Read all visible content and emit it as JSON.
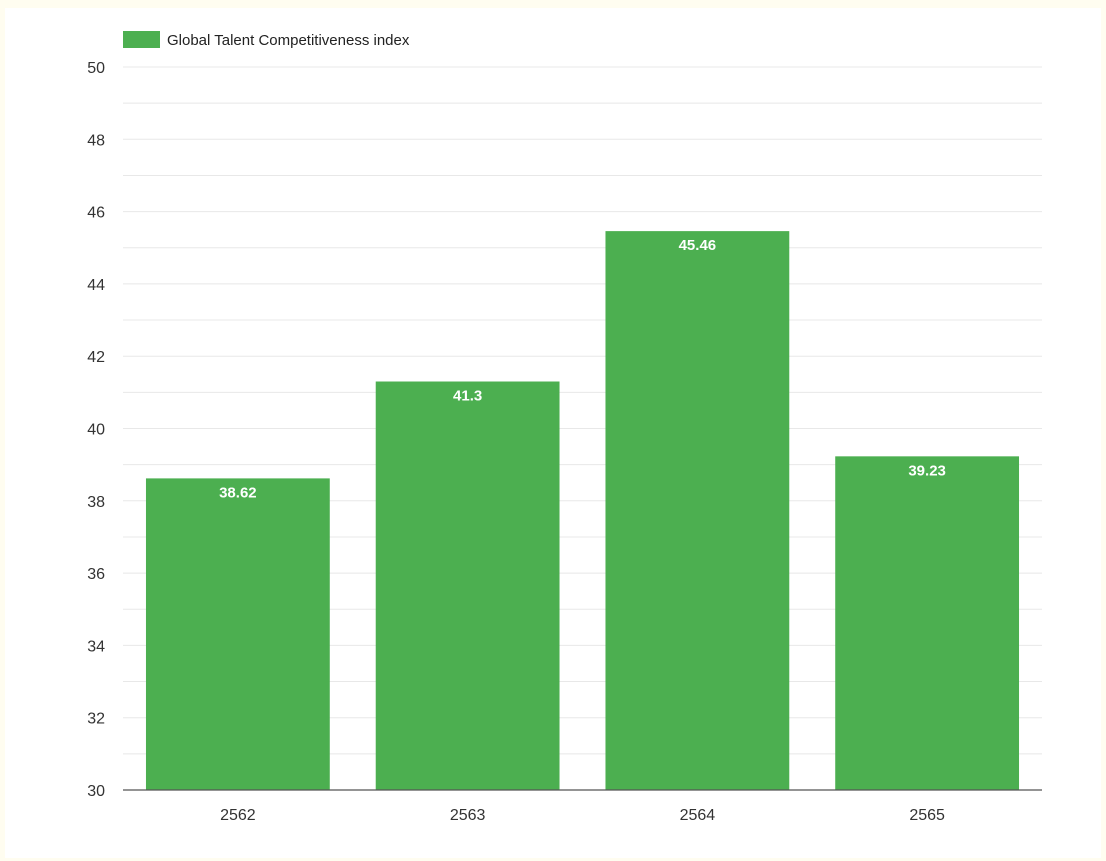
{
  "chart_data": {
    "type": "bar",
    "categories": [
      "2562",
      "2563",
      "2564",
      "2565"
    ],
    "series": [
      {
        "name": "Global Talent Competitiveness index",
        "values": [
          38.62,
          41.3,
          45.46,
          39.23
        ],
        "data_labels": [
          "38.62",
          "41.3",
          "45.46",
          "39.23"
        ],
        "color": "#4caf50"
      }
    ],
    "yticks": [
      "30",
      "32",
      "34",
      "36",
      "38",
      "40",
      "42",
      "44",
      "46",
      "48",
      "50"
    ],
    "ylim": [
      30,
      50
    ],
    "minor_grid_step": 1,
    "grid": true,
    "legend_position": "top-left"
  },
  "colors": {
    "background": "#fffdf0",
    "panel": "#ffffff",
    "gridline": "#e8e8e8",
    "axis": "#555555"
  }
}
